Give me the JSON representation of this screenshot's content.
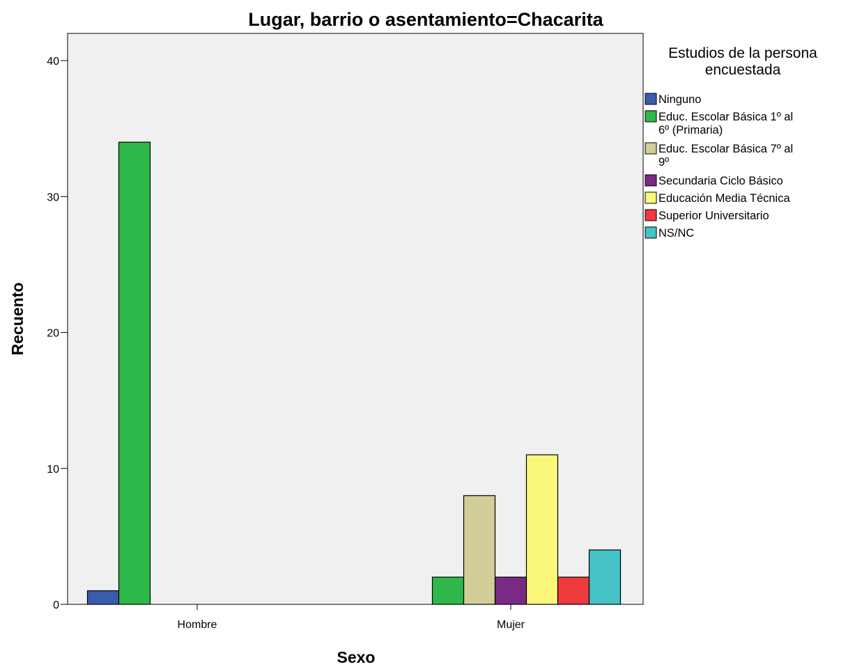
{
  "chart_data": {
    "type": "bar",
    "title": "Lugar, barrio o asentamiento=Chacarita",
    "xlabel": "Sexo",
    "ylabel": "Recuento",
    "categories": [
      "Hombre",
      "Mujer"
    ],
    "ylim": [
      0,
      42
    ],
    "yticks": [
      0,
      10,
      20,
      30,
      40
    ],
    "grid": false,
    "legend": {
      "title_lines": [
        "Estudios de la persona",
        "encuestada"
      ],
      "placement": "right"
    },
    "series": [
      {
        "name": "Ninguno",
        "label_lines": [
          "Ninguno"
        ],
        "color": "#3a5bae",
        "values": [
          1,
          0
        ]
      },
      {
        "name": "Educ. Escolar Básica 1º al 6º (Primaria)",
        "label_lines": [
          "Educ. Escolar Básica 1º al",
          "6º (Primaria)"
        ],
        "color": "#2fb84a",
        "values": [
          34,
          2
        ]
      },
      {
        "name": "Educ. Escolar Básica 7º al 9º",
        "label_lines": [
          "Educ. Escolar Básica 7º al",
          "9º"
        ],
        "color": "#d3ce97",
        "values": [
          0,
          8
        ]
      },
      {
        "name": "Secundaria Ciclo Básico",
        "label_lines": [
          "Secundaria Ciclo Básico"
        ],
        "color": "#7a2a84",
        "values": [
          0,
          2
        ]
      },
      {
        "name": "Educación Media Técnica",
        "label_lines": [
          "Educación Media Técnica"
        ],
        "color": "#fbf77a",
        "values": [
          0,
          11
        ]
      },
      {
        "name": "Superior Universitario",
        "label_lines": [
          "Superior Universitario"
        ],
        "color": "#ef3a3e",
        "values": [
          0,
          2
        ]
      },
      {
        "name": "NS/NC",
        "label_lines": [
          "NS/NC"
        ],
        "color": "#44c2c6",
        "values": [
          0,
          4
        ]
      }
    ]
  }
}
